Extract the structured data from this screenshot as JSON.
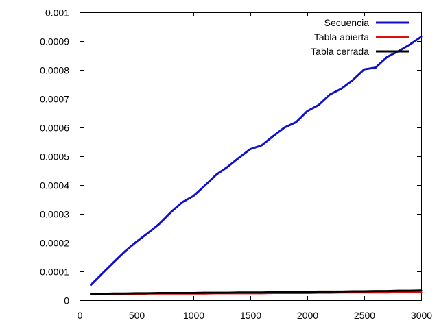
{
  "chart_data": {
    "type": "line",
    "title": "",
    "xlabel": "",
    "ylabel": "",
    "xlim": [
      0,
      3000
    ],
    "ylim": [
      0,
      0.001
    ],
    "x_ticks": [
      0,
      500,
      1000,
      1500,
      2000,
      2500,
      3000
    ],
    "x_tick_labels": [
      "0",
      "500",
      "1000",
      "1500",
      "2000",
      "2500",
      "3000"
    ],
    "y_ticks": [
      0,
      0.0001,
      0.0002,
      0.0003,
      0.0004,
      0.0005,
      0.0006,
      0.0007,
      0.0008,
      0.0009,
      0.001
    ],
    "y_tick_labels": [
      "0",
      "0.0001",
      "0.0002",
      "0.0003",
      "0.0004",
      "0.0005",
      "0.0006",
      "0.0007",
      "0.0008",
      "0.0009",
      "0.001"
    ],
    "grid": false,
    "legend_position": "top-right",
    "series": [
      {
        "name": "Secuencia",
        "color": "#1010cc",
        "x": [
          100,
          200,
          300,
          400,
          500,
          600,
          700,
          800,
          900,
          1000,
          1100,
          1200,
          1300,
          1400,
          1500,
          1600,
          1700,
          1800,
          1900,
          2000,
          2100,
          2200,
          2300,
          2400,
          2500,
          2600,
          2700,
          2800,
          2900,
          3000
        ],
        "y": [
          5.3e-05,
          9.3e-05,
          0.000132,
          0.00017,
          0.000203,
          0.000233,
          0.000265,
          0.000305,
          0.00034,
          0.000362,
          0.000398,
          0.000436,
          0.000463,
          0.000495,
          0.000525,
          0.000538,
          0.00057,
          0.0006,
          0.000618,
          0.000657,
          0.000678,
          0.000715,
          0.000735,
          0.000765,
          0.000802,
          0.000808,
          0.000845,
          0.000865,
          0.000888,
          0.000915
        ]
      },
      {
        "name": "Tabla abierta",
        "color": "#dd1010",
        "x": [
          100,
          200,
          300,
          400,
          500,
          600,
          700,
          800,
          900,
          1000,
          1100,
          1200,
          1300,
          1400,
          1500,
          1600,
          1700,
          1800,
          1900,
          2000,
          2100,
          2200,
          2300,
          2400,
          2500,
          2600,
          2700,
          2800,
          2900,
          3000
        ],
        "y": [
          2.1e-05,
          2.1e-05,
          2.2e-05,
          2.2e-05,
          2.1e-05,
          2.3e-05,
          2.3e-05,
          2.3e-05,
          2.3e-05,
          2.3e-05,
          2.3e-05,
          2.4e-05,
          2.4e-05,
          2.4e-05,
          2.4e-05,
          2.4e-05,
          2.5e-05,
          2.5e-05,
          2.5e-05,
          2.5e-05,
          2.6e-05,
          2.6e-05,
          2.7e-05,
          2.7e-05,
          2.7e-05,
          2.7e-05,
          2.7e-05,
          2.8e-05,
          2.8e-05,
          2.8e-05
        ]
      },
      {
        "name": "Tabla cerrada",
        "color": "#000000",
        "x": [
          100,
          200,
          300,
          400,
          500,
          600,
          700,
          800,
          900,
          1000,
          1100,
          1200,
          1300,
          1400,
          1500,
          1600,
          1700,
          1800,
          1900,
          2000,
          2100,
          2200,
          2300,
          2400,
          2500,
          2600,
          2700,
          2800,
          2900,
          3000
        ],
        "y": [
          2.2e-05,
          2.2e-05,
          2.3e-05,
          2.3e-05,
          2.4e-05,
          2.4e-05,
          2.5e-05,
          2.5e-05,
          2.5e-05,
          2.5e-05,
          2.6e-05,
          2.6e-05,
          2.6e-05,
          2.7e-05,
          2.7e-05,
          2.7e-05,
          2.8e-05,
          2.8e-05,
          2.9e-05,
          2.9e-05,
          3e-05,
          3e-05,
          3e-05,
          3.1e-05,
          3.1e-05,
          3.2e-05,
          3.2e-05,
          3.3e-05,
          3.3e-05,
          3.4e-05
        ]
      }
    ]
  }
}
